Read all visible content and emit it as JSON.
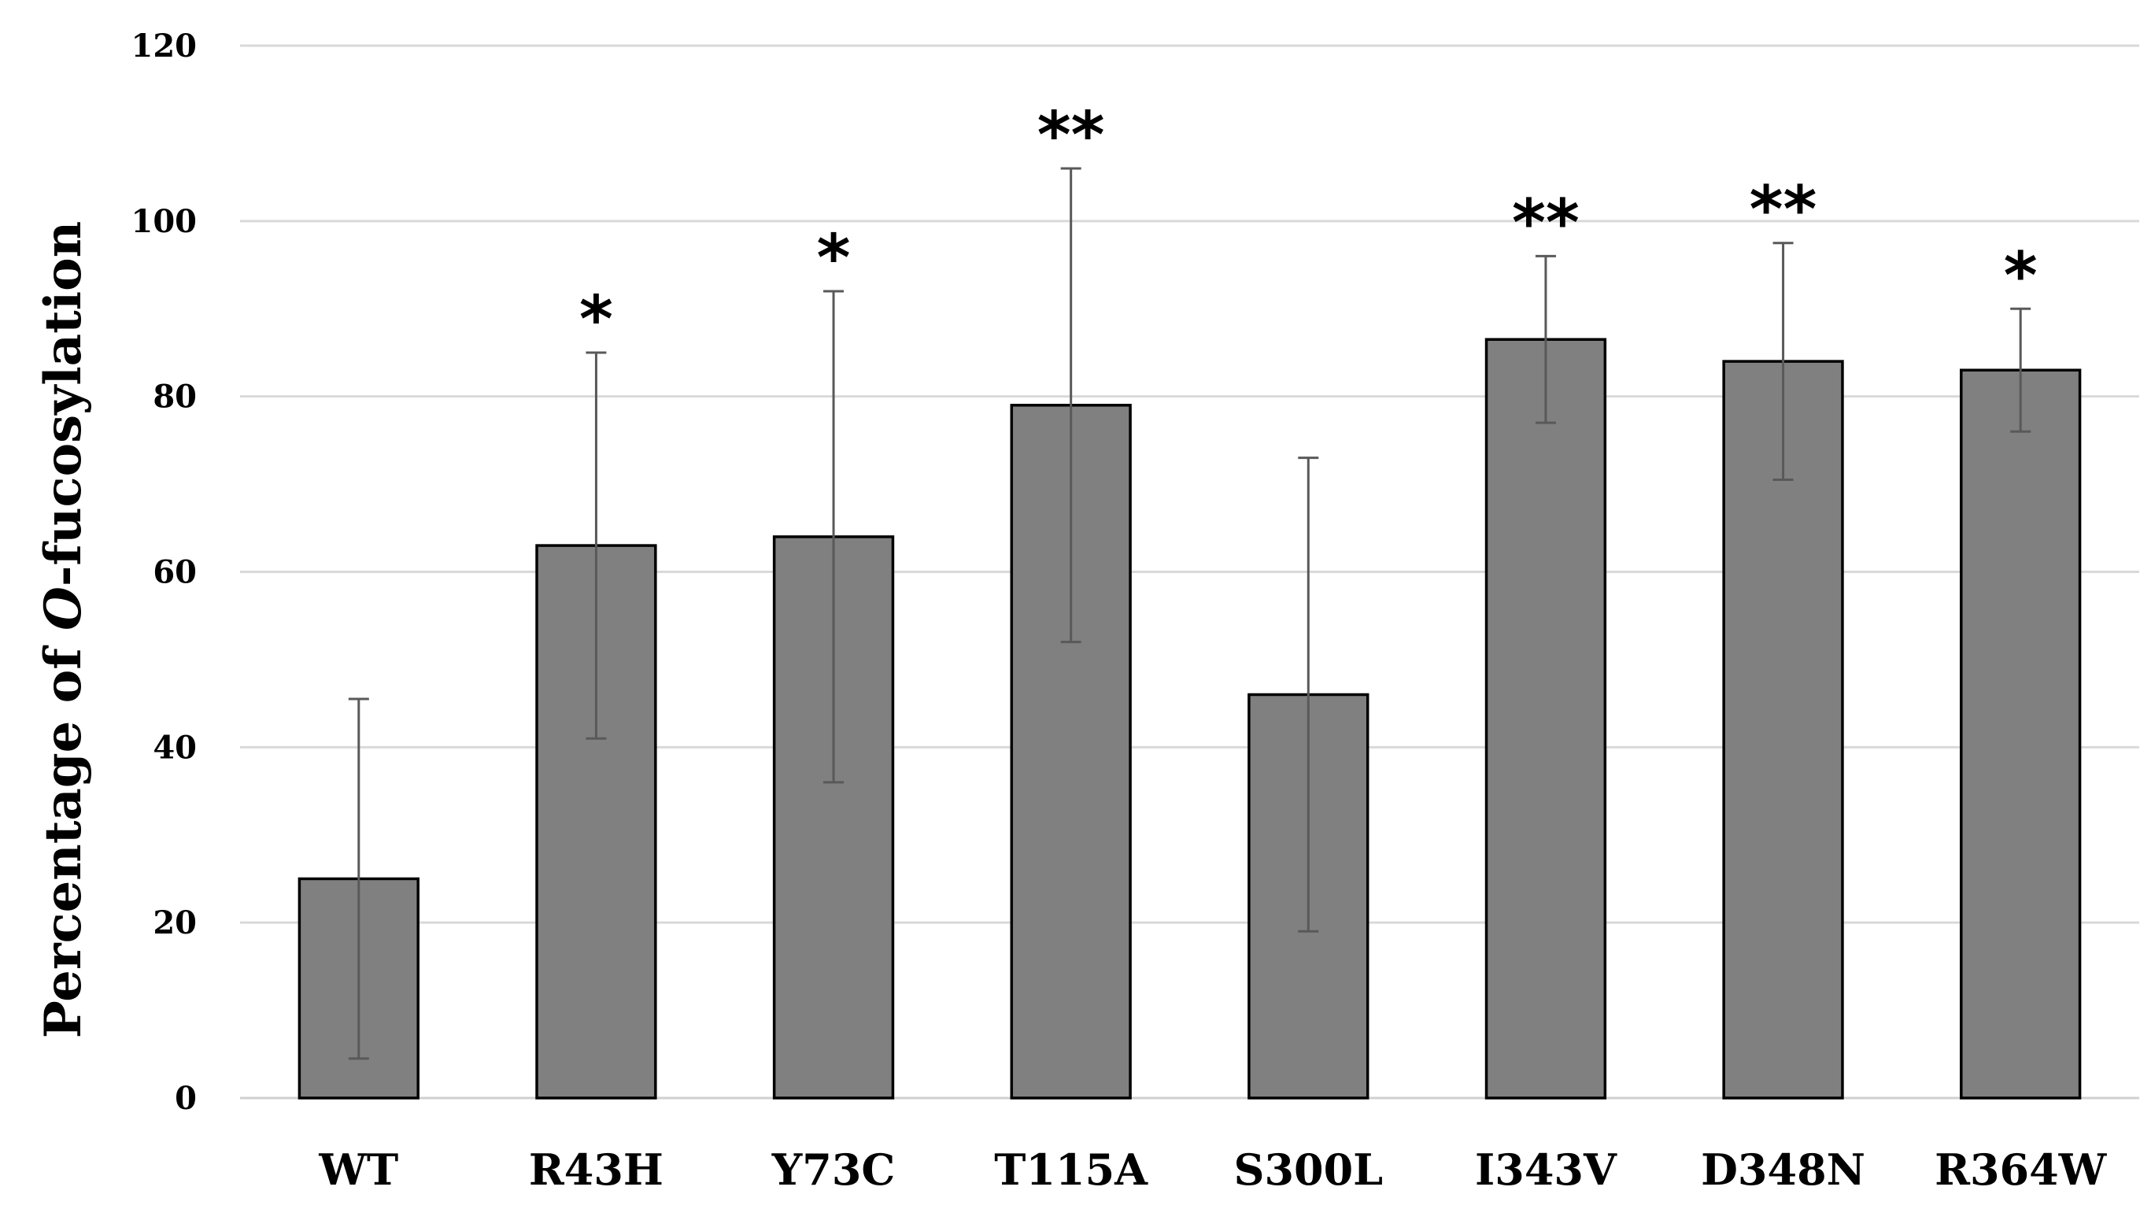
{
  "chart_data": {
    "type": "bar",
    "title": "",
    "xlabel": "",
    "ylabel_prefix": "Percentage of ",
    "ylabel_italic": "O",
    "ylabel_suffix": "-fucosylation",
    "ylim": [
      0,
      120
    ],
    "yticks": [
      0,
      20,
      40,
      60,
      80,
      100,
      120
    ],
    "grid": true,
    "categories": [
      "WT",
      "R43H",
      "Y73C",
      "T115A",
      "S300L",
      "I343V",
      "D348N",
      "R364W"
    ],
    "values": [
      25,
      63,
      64,
      79,
      46,
      86.5,
      84,
      83
    ],
    "error": [
      20.5,
      22,
      28,
      27,
      27,
      9.5,
      13.5,
      7
    ],
    "significance": [
      "",
      "*",
      "*",
      "**",
      "",
      "**",
      "**",
      "*"
    ],
    "colors": {
      "bar_fill": "#808080",
      "bar_stroke": "#000000",
      "error_bar": "#595959",
      "grid": "#d9d9d9",
      "baseline": "#d0d0d0"
    }
  }
}
